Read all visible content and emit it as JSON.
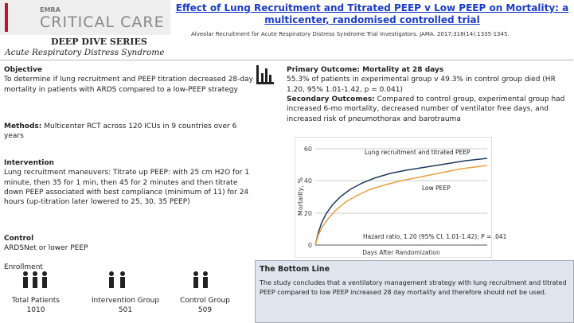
{
  "header": {
    "logo_small": "EMRA",
    "logo": "CRITICAL CARE",
    "series": "DEEP DIVE SERIES",
    "topic": "Acute Respiratory Distress Syndrome",
    "title": "Effect of Lung Recruitment and Titrated PEEP v Low PEEP on Mortality: a multicenter, randomised controlled trial",
    "citation": "Alveolar Recruitment for Acute Respiratory Distress Syndrome Trial Investigators. JAMA. 2017;318(14):1335-1345."
  },
  "left": {
    "objective_label": "Objective",
    "objective": "To determine if lung recruitment and PEEP titration decreased 28-day mortality in patients with ARDS compared to a low-PEEP strategy",
    "methods_label": "Methods:",
    "methods": "Multicenter RCT across 120 ICUs in 9 countries over 6 years",
    "intervention_label": "Intervention",
    "intervention": "Lung recruitment maneuvers: Titrate up PEEP: with 25 cm H2O for 1 minute, then 35 for 1 min, then 45 for 2 minutes and then titrate down PEEP associated with best compliance (minimum of 11) for 24 hours (up-titration later lowered to 25, 30, 35 PEEP)",
    "control_label": "Control",
    "control": "ARDSNet or lower PEEP",
    "enrollment_label": "Enrollment"
  },
  "stats": [
    {
      "label": "Total Patients",
      "value": "1010"
    },
    {
      "label": "Intervention Group",
      "value": "501"
    },
    {
      "label": "Control Group",
      "value": "509"
    }
  ],
  "right": {
    "primary_label": "Primary Outcome: Mortality at 28 days",
    "primary": "55.3% of patients in experimental group v 49.3% in control group died (HR 1.20, 95% 1.01-1.42, p = 0.041)",
    "secondary_label": "Secondary Outcomes:",
    "secondary": "Compared to control group, experimental group had increased 6-mo mortality, decreased number of ventilator free days, and increased risk of pneumothorax and barotrauma"
  },
  "figure": {
    "y_label": "Mortality, %",
    "yticks": [
      "60",
      "40",
      "20",
      "0"
    ],
    "series_a": "Lung recruitment and titrated PEEP",
    "series_b": "Low PEEP",
    "hazard": "Hazard ratio, 1.20 (95% CI, 1.01-1.42); P = .041",
    "x_label": "Days After Randomization"
  },
  "bottom_line": {
    "title": "The Bottom Line",
    "text": "The study concludes that a ventilatory management strategy with lung recruitment and titrated PEEP compared to low PEEP increased 28 day mortality and therefore should not be used."
  }
}
